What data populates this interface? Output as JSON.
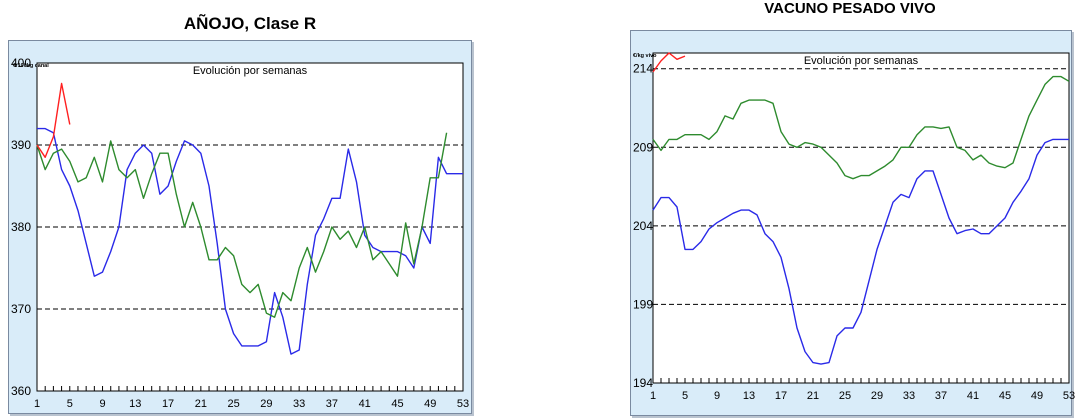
{
  "chart_data": [
    {
      "type": "line",
      "title": "AÑOJO, Clase R",
      "subtitle": "Evolución por semanas",
      "unit": "€/100kg canal",
      "ylim": [
        360,
        400
      ],
      "yticks": [
        360,
        370,
        380,
        390,
        400
      ],
      "xlim": [
        1,
        53
      ],
      "xticks": [
        1,
        5,
        9,
        13,
        17,
        21,
        25,
        29,
        33,
        37,
        41,
        45,
        49,
        53
      ],
      "grid_y": [
        370,
        380,
        390
      ],
      "series": [
        {
          "color": "#2a2ae8",
          "x": [
            1,
            2,
            3,
            4,
            5,
            6,
            7,
            8,
            9,
            10,
            11,
            12,
            13,
            14,
            15,
            16,
            17,
            18,
            19,
            20,
            21,
            22,
            23,
            24,
            25,
            26,
            27,
            28,
            29,
            30,
            31,
            32,
            33,
            34,
            35,
            36,
            37,
            38,
            39,
            40,
            41,
            42,
            43,
            44,
            45,
            46,
            47,
            48,
            49,
            50,
            51,
            52,
            53
          ],
          "y": [
            392,
            392,
            391.5,
            387,
            385,
            382,
            378,
            374,
            374.5,
            377,
            380,
            387,
            389,
            390,
            389,
            384,
            385,
            388,
            390.5,
            390,
            389,
            385,
            378,
            370,
            367,
            365.5,
            365.5,
            365.5,
            366,
            372,
            369,
            364.5,
            365,
            373,
            379,
            381,
            383.5,
            383.5,
            389.5,
            385.5,
            379,
            377.5,
            377,
            377,
            377,
            376.5,
            375,
            380,
            378,
            388.5,
            386.5,
            386.5,
            386.5
          ]
        },
        {
          "color": "#2e8b2e",
          "x": [
            1,
            2,
            3,
            4,
            5,
            6,
            7,
            8,
            9,
            10,
            11,
            12,
            13,
            14,
            15,
            16,
            17,
            18,
            19,
            20,
            21,
            22,
            23,
            24,
            25,
            26,
            27,
            28,
            29,
            30,
            31,
            32,
            33,
            34,
            35,
            36,
            37,
            38,
            39,
            40,
            41,
            42,
            43,
            44,
            45,
            46,
            47,
            48,
            49,
            50,
            51
          ],
          "y": [
            390,
            387,
            389,
            389.5,
            388,
            385.5,
            386,
            388.5,
            385.5,
            390.5,
            387,
            386,
            387,
            383.5,
            386.5,
            389,
            389,
            384,
            380,
            383,
            380,
            376,
            376,
            377.5,
            376.5,
            373,
            372,
            373,
            369.5,
            369,
            372,
            371,
            375,
            377.5,
            374.5,
            377,
            380,
            378.5,
            379.5,
            377.5,
            380,
            376,
            377,
            375.5,
            374,
            380.5,
            375.5,
            380,
            386,
            386,
            391.5
          ]
        },
        {
          "color": "#ff2020",
          "x": [
            1,
            2,
            3,
            4,
            5
          ],
          "y": [
            390,
            388.5,
            391,
            397.5,
            392.5
          ]
        }
      ]
    },
    {
      "type": "line",
      "title": "VACUNO PESADO VIVO",
      "subtitle": "Evolución por semanas",
      "unit": "€/kg vivo",
      "ylim": [
        194,
        215
      ],
      "yticks": [
        194,
        199,
        204,
        209,
        214
      ],
      "xlim": [
        1,
        53
      ],
      "xticks": [
        1,
        5,
        9,
        13,
        17,
        21,
        25,
        29,
        33,
        37,
        41,
        45,
        49,
        53
      ],
      "grid_y": [
        199,
        204,
        209,
        214
      ],
      "series": [
        {
          "color": "#2a2ae8",
          "x": [
            1,
            2,
            3,
            4,
            5,
            6,
            7,
            8,
            9,
            10,
            11,
            12,
            13,
            14,
            15,
            16,
            17,
            18,
            19,
            20,
            21,
            22,
            23,
            24,
            25,
            26,
            27,
            28,
            29,
            30,
            31,
            32,
            33,
            34,
            35,
            36,
            37,
            38,
            39,
            40,
            41,
            42,
            43,
            44,
            45,
            46,
            47,
            48,
            49,
            50,
            51,
            52,
            53
          ],
          "y": [
            205,
            205.8,
            205.8,
            205.2,
            202.5,
            202.5,
            203,
            203.8,
            204.2,
            204.5,
            204.8,
            205,
            205,
            204.7,
            203.5,
            203,
            202,
            200,
            197.5,
            196,
            195.3,
            195.2,
            195.3,
            197,
            197.5,
            197.5,
            198.5,
            200.5,
            202.5,
            204,
            205.5,
            206,
            205.8,
            207,
            207.5,
            207.5,
            206,
            204.5,
            203.5,
            203.7,
            203.8,
            203.5,
            203.5,
            204,
            204.5,
            205.5,
            206.2,
            207,
            208.5,
            209.3,
            209.5,
            209.5,
            209.5
          ]
        },
        {
          "color": "#2e8b2e",
          "x": [
            1,
            2,
            3,
            4,
            5,
            6,
            7,
            8,
            9,
            10,
            11,
            12,
            13,
            14,
            15,
            16,
            17,
            18,
            19,
            20,
            21,
            22,
            23,
            24,
            25,
            26,
            27,
            28,
            29,
            30,
            31,
            32,
            33,
            34,
            35,
            36,
            37,
            38,
            39,
            40,
            41,
            42,
            43,
            44,
            45,
            46,
            47,
            48,
            49,
            50,
            51,
            52,
            53
          ],
          "y": [
            209.5,
            208.8,
            209.5,
            209.5,
            209.8,
            209.8,
            209.8,
            209.5,
            210,
            211,
            210.8,
            211.8,
            212,
            212,
            212,
            211.8,
            210,
            209.2,
            209,
            209.3,
            209.2,
            209,
            208.5,
            208,
            207.2,
            207,
            207.2,
            207.2,
            207.5,
            207.8,
            208.2,
            209,
            209,
            209.8,
            210.3,
            210.3,
            210.2,
            210.3,
            209,
            208.8,
            208.2,
            208.5,
            208,
            207.8,
            207.7,
            208,
            209.5,
            211,
            212,
            213,
            213.5,
            213.5,
            213.2
          ]
        },
        {
          "color": "#ff2020",
          "x": [
            1,
            2,
            3,
            4,
            5
          ],
          "y": [
            213.8,
            214.5,
            215,
            214.6,
            214.8
          ]
        }
      ]
    }
  ]
}
